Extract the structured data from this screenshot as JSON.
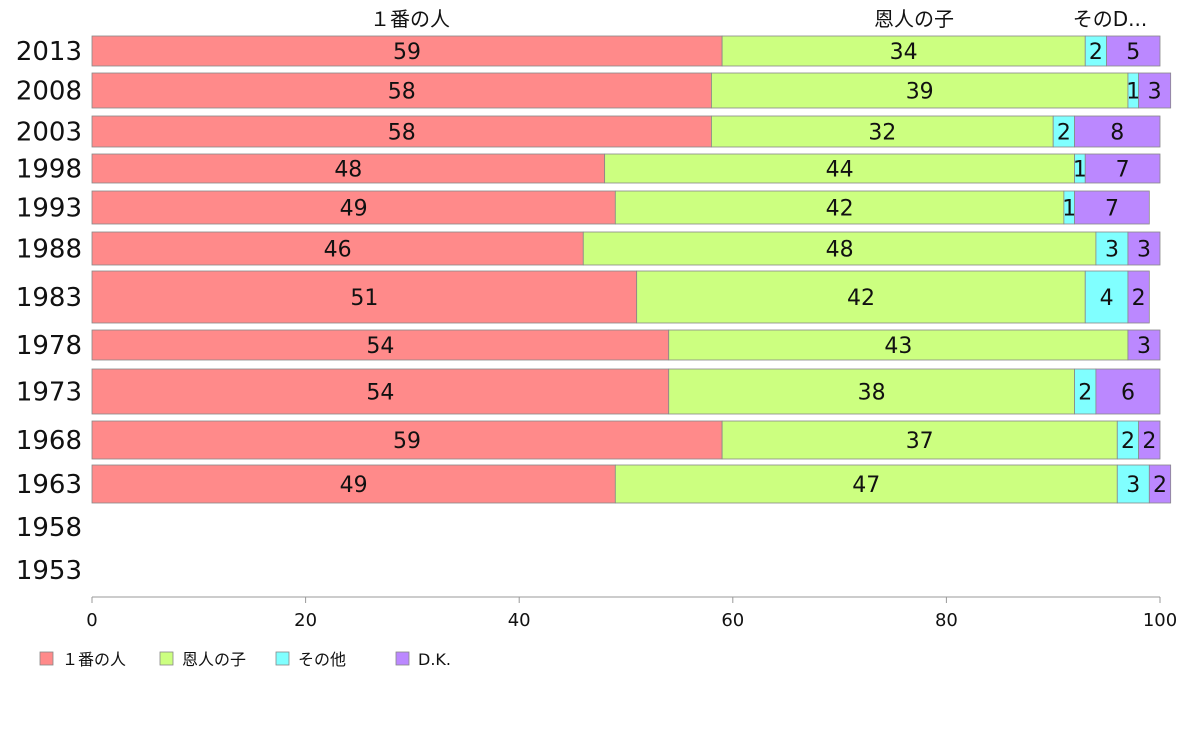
{
  "chart_data": {
    "type": "bar",
    "orientation": "horizontal",
    "stacked": true,
    "categories": [
      "2013",
      "2008",
      "2003",
      "1998",
      "1993",
      "1988",
      "1983",
      "1978",
      "1973",
      "1968",
      "1963",
      "1958",
      "1953"
    ],
    "series": [
      {
        "name": "１番の人",
        "color": "#ff8a8a",
        "values": [
          59,
          58,
          58,
          48,
          49,
          46,
          51,
          54,
          54,
          59,
          49,
          null,
          null
        ]
      },
      {
        "name": "恩人の子",
        "color": "#ccff80",
        "values": [
          34,
          39,
          32,
          44,
          42,
          48,
          42,
          43,
          38,
          37,
          47,
          null,
          null
        ]
      },
      {
        "name": "その他",
        "color": "#80ffff",
        "values": [
          2,
          1,
          2,
          1,
          1,
          3,
          4,
          0,
          2,
          2,
          3,
          null,
          null
        ]
      },
      {
        "name": "D.K.",
        "color": "#bb88ff",
        "values": [
          5,
          3,
          8,
          7,
          7,
          3,
          2,
          3,
          6,
          2,
          2,
          null,
          null
        ]
      }
    ],
    "segment_labels": [
      [
        "59",
        "34",
        "2",
        "5"
      ],
      [
        "58",
        "39",
        "1",
        "3"
      ],
      [
        "58",
        "32",
        "2",
        "8"
      ],
      [
        "48",
        "44",
        "1",
        "7"
      ],
      [
        "49",
        "42",
        "1",
        "7"
      ],
      [
        "46",
        "48",
        "3",
        "3"
      ],
      [
        "51",
        "42",
        "4",
        "2"
      ],
      [
        "54",
        "43",
        "",
        "3"
      ],
      [
        "54",
        "38",
        "2",
        "6"
      ],
      [
        "59",
        "37",
        "2",
        "2"
      ],
      [
        "49",
        "47",
        "3",
        "2"
      ],
      [
        "",
        "",
        "",
        ""
      ],
      [
        "",
        "",
        "",
        ""
      ]
    ],
    "header_labels": [
      "１番の人",
      "恩人の子",
      "そのD..."
    ],
    "xlim": [
      0,
      100
    ],
    "xticks": [
      "0",
      "20",
      "40",
      "60",
      "80",
      "100"
    ],
    "legend_position": "bottom-left",
    "grid": false
  }
}
